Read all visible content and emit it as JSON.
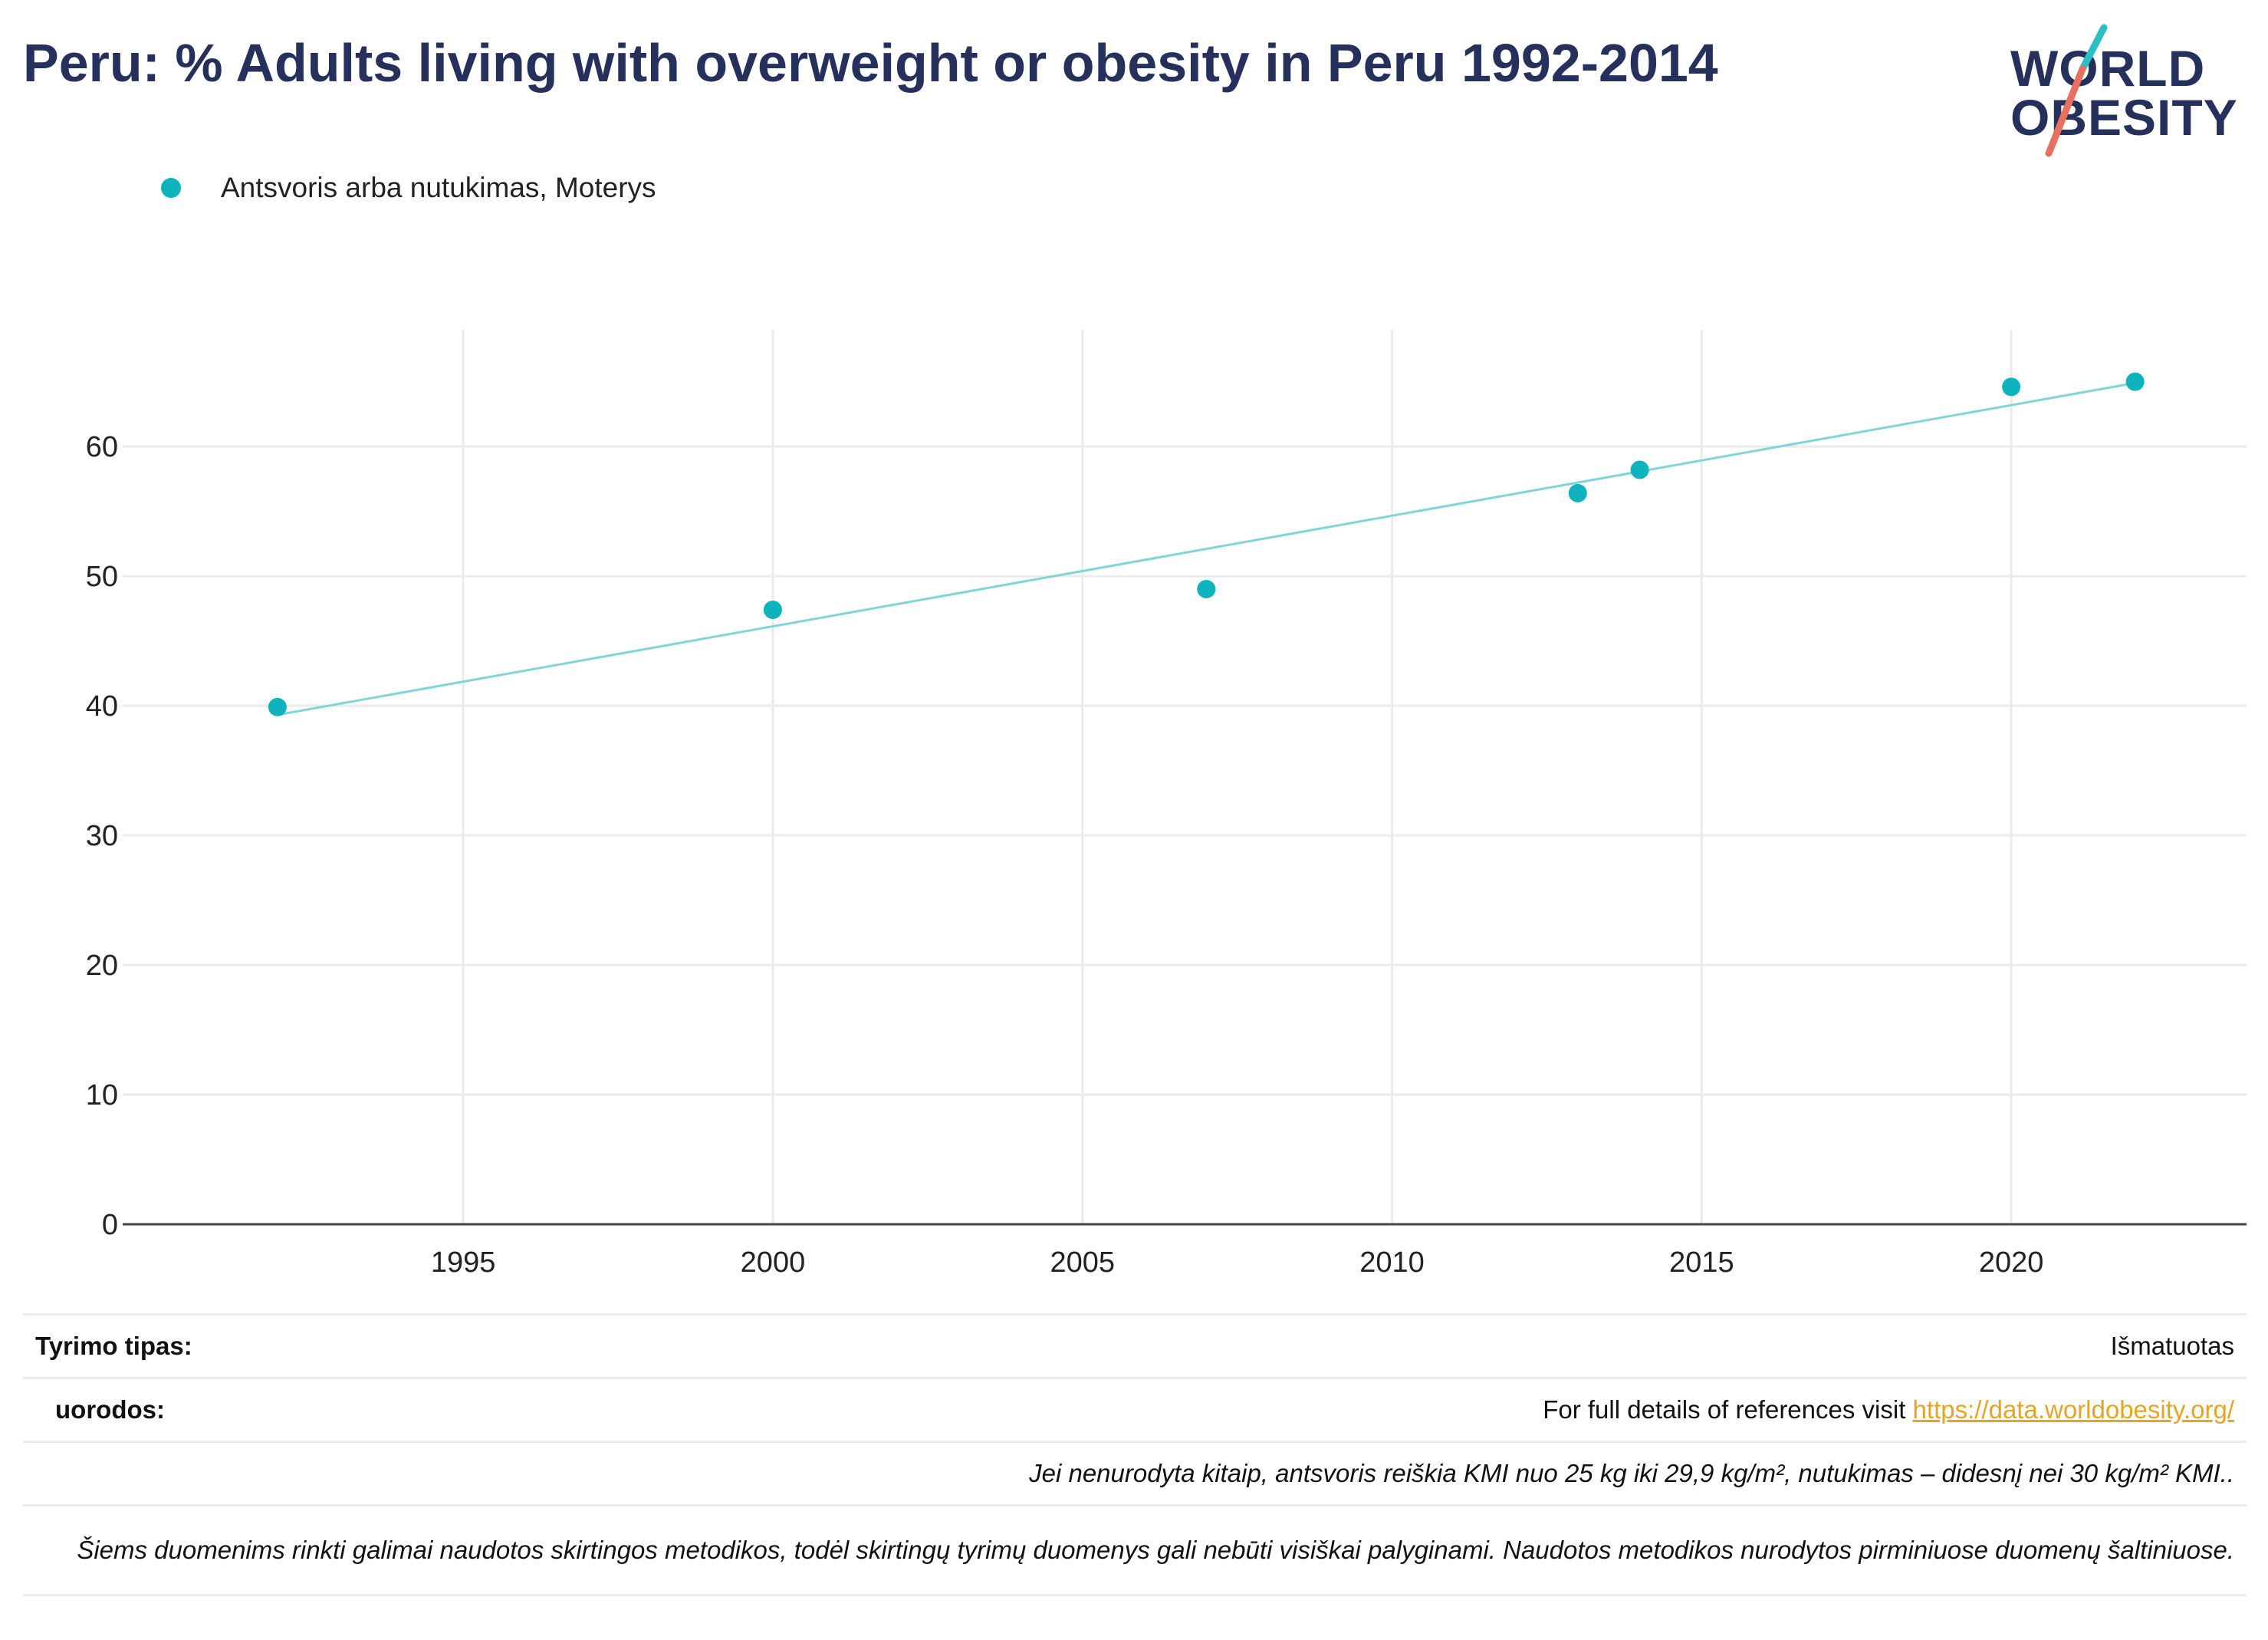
{
  "title": "Peru: % Adults living with overweight or obesity in Peru 1992-2014",
  "logo": {
    "line1": "WORLD",
    "line2": "OBESITY"
  },
  "legend": [
    {
      "label": "Antsvoris arba nutukimas, Moterys",
      "color": "#0fb3bd"
    }
  ],
  "chart_data": {
    "type": "scatter",
    "title": "Peru: % Adults living with overweight or obesity in Peru 1992-2014",
    "xlabel": "",
    "ylabel": "",
    "x_ticks": [
      1995,
      2000,
      2005,
      2010,
      2015,
      2020
    ],
    "y_ticks": [
      0,
      10,
      20,
      30,
      40,
      50,
      60
    ],
    "xlim": [
      1989.5,
      2023.8
    ],
    "ylim": [
      0,
      69
    ],
    "grid": true,
    "legend_position": "top-left",
    "series": [
      {
        "name": "Antsvoris arba nutukimas, Moterys",
        "color": "#0fb3bd",
        "points": [
          {
            "x": 1992,
            "y": 39.9
          },
          {
            "x": 2000,
            "y": 47.4
          },
          {
            "x": 2007,
            "y": 49.0
          },
          {
            "x": 2013,
            "y": 56.4
          },
          {
            "x": 2014,
            "y": 58.2
          },
          {
            "x": 2020,
            "y": 64.6
          },
          {
            "x": 2022,
            "y": 65.0
          }
        ],
        "trendline": {
          "color": "#7fd5da",
          "from": {
            "x": 1992,
            "y": 39.3
          },
          "to": {
            "x": 2022,
            "y": 64.9
          }
        }
      }
    ]
  },
  "footer": {
    "survey_type_label": "Tyrimo tipas:",
    "survey_type_value": "Išmatuotas",
    "references_label": "uorodos:",
    "references_text": "For full details of references visit ",
    "references_link": "https://data.worldobesity.org/",
    "note1": "Jei nenurodyta kitaip, antsvoris reiškia KMI nuo 25 kg iki 29,9 kg/m², nutukimas – didesnį nei 30 kg/m² KMI..",
    "note2": "Šiems duomenims rinkti galimai naudotos skirtingos metodikos, todėl skirtingų tyrimų duomenys gali nebūti visiškai palyginami. Naudotos metodikos nurodytos pirminiuose duomenų šaltiniuose."
  }
}
